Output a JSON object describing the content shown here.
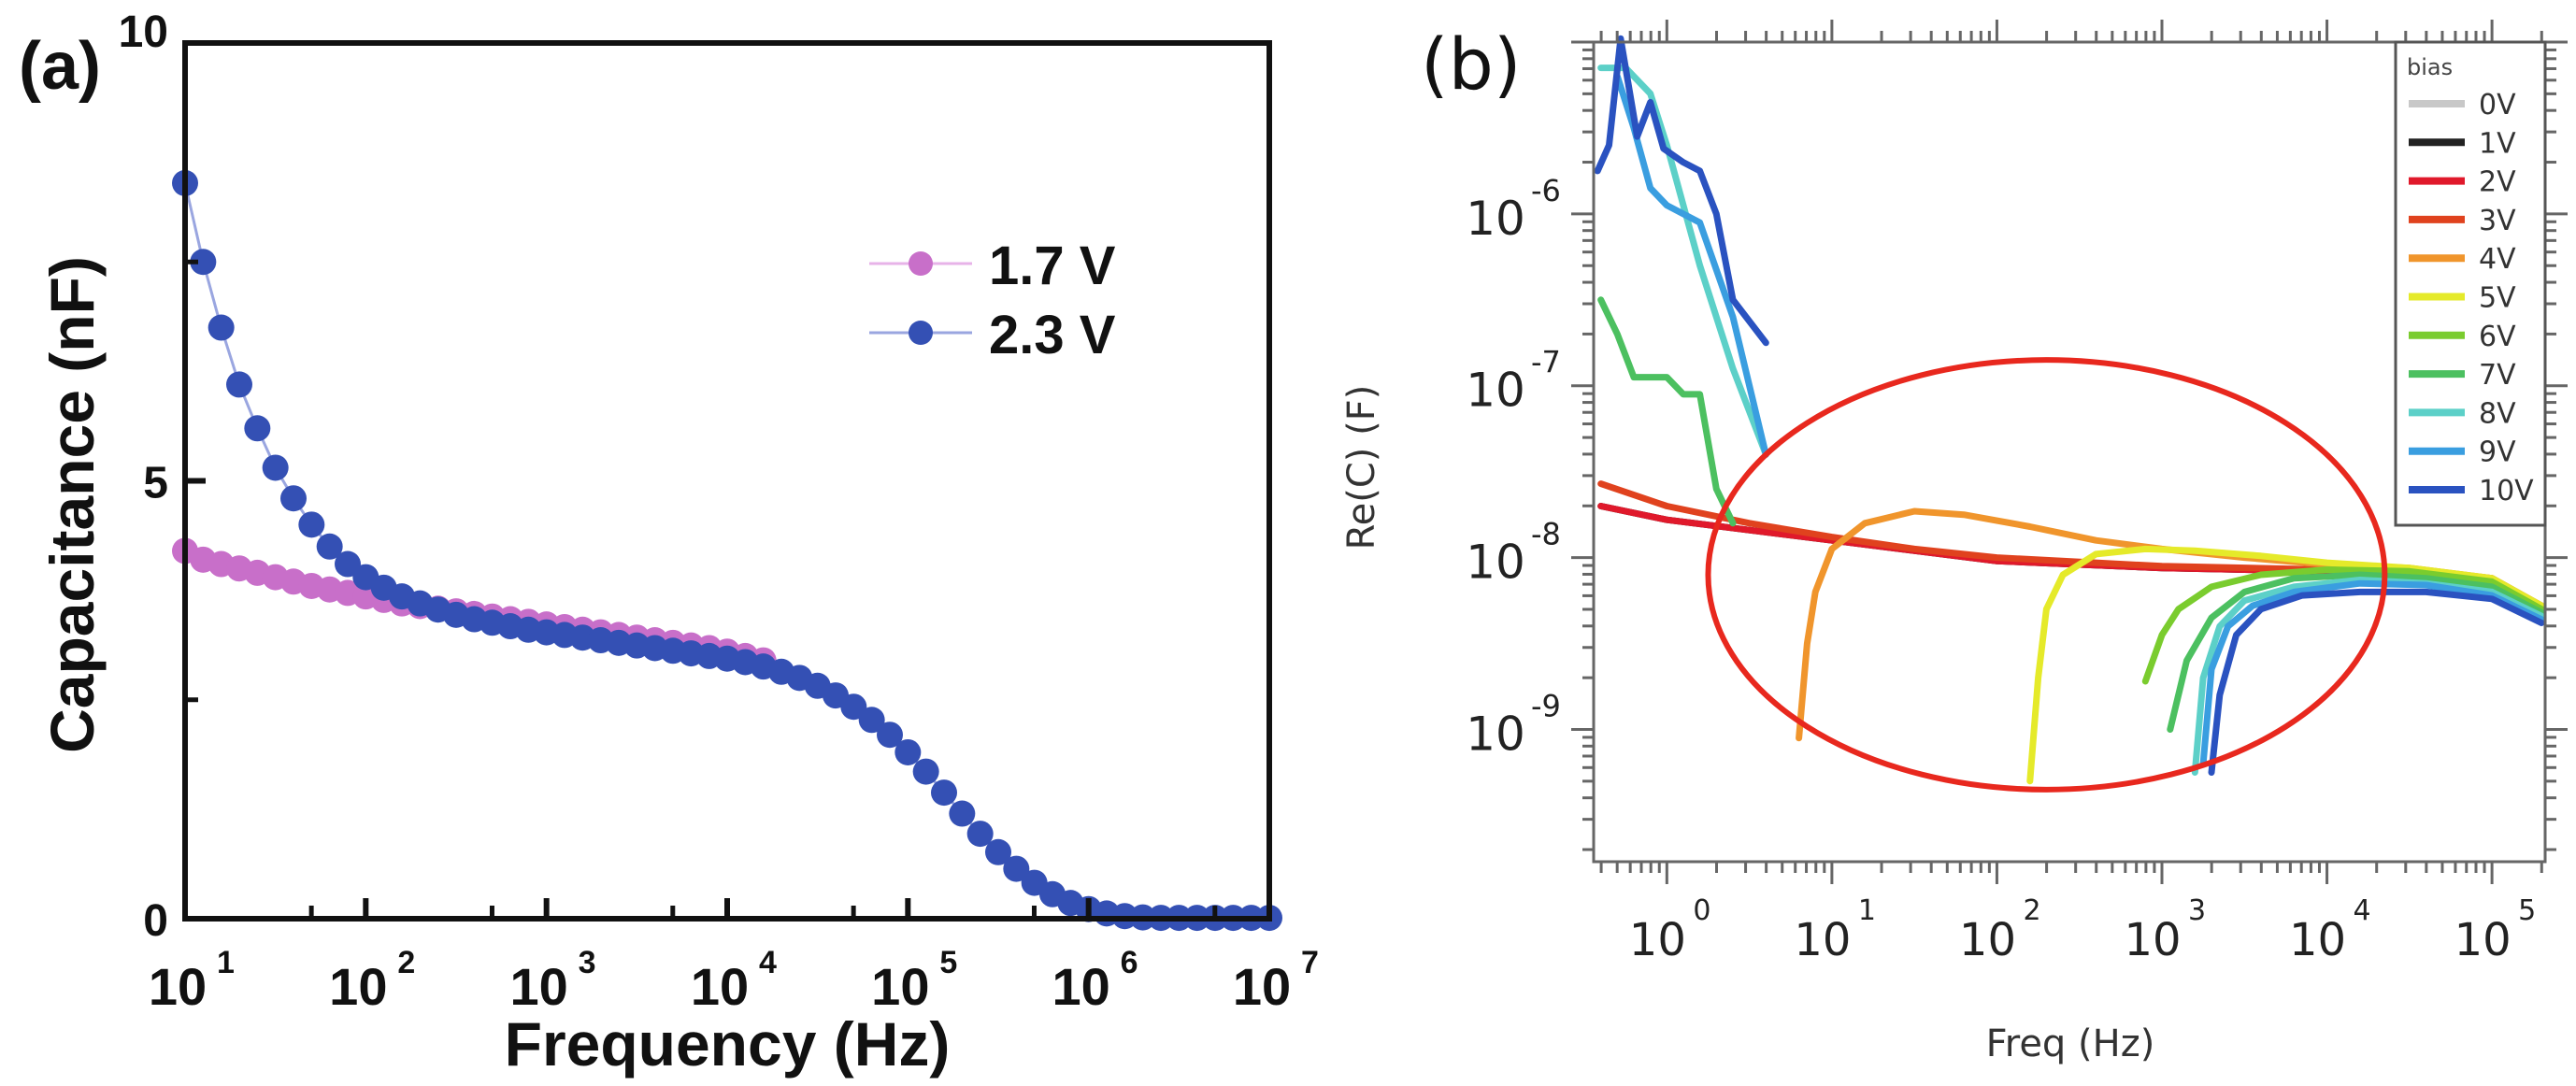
{
  "chart_data": [
    {
      "panel_label": "(a)",
      "type": "scatter",
      "title": "",
      "xlabel": "Frequency (Hz)",
      "ylabel": "Capacitance (nF)",
      "xscale": "log",
      "xlim": [
        10,
        10000000
      ],
      "ylim": [
        0,
        10
      ],
      "x_ticks": [
        {
          "base": "10",
          "exp": "1",
          "value": 10
        },
        {
          "base": "10",
          "exp": "2",
          "value": 100
        },
        {
          "base": "10",
          "exp": "3",
          "value": 1000
        },
        {
          "base": "10",
          "exp": "4",
          "value": 10000
        },
        {
          "base": "10",
          "exp": "5",
          "value": 100000
        },
        {
          "base": "10",
          "exp": "6",
          "value": 1000000
        },
        {
          "base": "10",
          "exp": "7",
          "value": 10000000
        }
      ],
      "y_ticks": [
        {
          "label": "0",
          "value": 0
        },
        {
          "label": "5",
          "value": 5
        },
        {
          "label": "10",
          "value": 10
        }
      ],
      "grid": false,
      "legend_position": "upper-right",
      "series": [
        {
          "name": "1.7 V",
          "color": "#c86fc9",
          "line_color": "#e7b3e8",
          "log10_x": [
            1.0,
            1.1,
            1.2,
            1.3,
            1.4,
            1.5,
            1.6,
            1.7,
            1.8,
            1.9,
            2.0,
            2.1,
            2.2,
            2.3,
            2.4,
            2.5,
            2.6,
            2.7,
            2.8,
            2.9,
            3.0,
            3.1,
            3.2,
            3.3,
            3.4,
            3.5,
            3.6,
            3.7,
            3.8,
            3.9,
            4.0,
            4.1,
            4.2
          ],
          "y": [
            4.2,
            4.1,
            4.05,
            4.0,
            3.95,
            3.9,
            3.85,
            3.8,
            3.76,
            3.72,
            3.68,
            3.64,
            3.6,
            3.57,
            3.54,
            3.51,
            3.48,
            3.45,
            3.42,
            3.39,
            3.36,
            3.33,
            3.3,
            3.27,
            3.24,
            3.21,
            3.18,
            3.15,
            3.12,
            3.09,
            3.05,
            3.0,
            2.95
          ]
        },
        {
          "name": "2.3 V",
          "color": "#3450b4",
          "line_color": "#9aa6e0",
          "log10_x": [
            1.0,
            1.1,
            1.2,
            1.3,
            1.4,
            1.5,
            1.6,
            1.7,
            1.8,
            1.9,
            2.0,
            2.1,
            2.2,
            2.3,
            2.4,
            2.5,
            2.6,
            2.7,
            2.8,
            2.9,
            3.0,
            3.1,
            3.2,
            3.3,
            3.4,
            3.5,
            3.6,
            3.7,
            3.8,
            3.9,
            4.0,
            4.1,
            4.2,
            4.3,
            4.4,
            4.5,
            4.6,
            4.7,
            4.8,
            4.9,
            5.0,
            5.1,
            5.2,
            5.3,
            5.4,
            5.5,
            5.6,
            5.7,
            5.8,
            5.9,
            6.0,
            6.1,
            6.2,
            6.3,
            6.4,
            6.5,
            6.6,
            6.7,
            6.8,
            6.9,
            7.0
          ],
          "y": [
            8.4,
            7.5,
            6.75,
            6.1,
            5.6,
            5.15,
            4.8,
            4.5,
            4.25,
            4.05,
            3.9,
            3.78,
            3.68,
            3.6,
            3.53,
            3.47,
            3.42,
            3.38,
            3.34,
            3.3,
            3.27,
            3.24,
            3.21,
            3.18,
            3.15,
            3.12,
            3.09,
            3.06,
            3.03,
            3.0,
            2.97,
            2.93,
            2.88,
            2.82,
            2.75,
            2.66,
            2.55,
            2.42,
            2.27,
            2.1,
            1.9,
            1.68,
            1.44,
            1.2,
            0.97,
            0.76,
            0.57,
            0.41,
            0.28,
            0.18,
            0.11,
            0.06,
            0.03,
            0.015,
            0.01,
            0.01,
            0.01,
            0.01,
            0.01,
            0.01,
            0.01
          ]
        }
      ]
    },
    {
      "panel_label": "(b)",
      "type": "line",
      "title": "",
      "xlabel": "Freq (Hz)",
      "ylabel": "Re(C) (F)",
      "xscale": "log",
      "yscale": "log",
      "xlim": [
        0.36,
        210000
      ],
      "ylim": [
        1.7e-10,
        1e-05
      ],
      "x_ticks": [
        {
          "base": "10",
          "exp": "0",
          "value": 1
        },
        {
          "base": "10",
          "exp": "1",
          "value": 10
        },
        {
          "base": "10",
          "exp": "2",
          "value": 100
        },
        {
          "base": "10",
          "exp": "3",
          "value": 1000
        },
        {
          "base": "10",
          "exp": "4",
          "value": 10000
        },
        {
          "base": "10",
          "exp": "5",
          "value": 100000
        }
      ],
      "y_ticks": [
        {
          "base": "10",
          "exp": "-6",
          "value": 1e-06
        },
        {
          "base": "10",
          "exp": "-7",
          "value": 1e-07
        },
        {
          "base": "10",
          "exp": "-8",
          "value": 1e-08
        },
        {
          "base": "10",
          "exp": "-9",
          "value": 1e-09
        }
      ],
      "grid": false,
      "legend_title": "bias",
      "legend_position": "upper-right",
      "annotation": {
        "type": "ellipse",
        "color": "#e8281e",
        "description": "red ellipse highlighting onset region",
        "center_log10": [
          2.3,
          -8.1
        ],
        "radius_log10": [
          2.05,
          1.25
        ]
      },
      "series": [
        {
          "name": "0V",
          "color": "#c8c8c8",
          "log10_x": [
            -0.4,
            0,
            1,
            2,
            3,
            4,
            4.6,
            5.0,
            5.3
          ],
          "log10_y": [
            -7.7,
            -7.78,
            -7.9,
            -8.02,
            -8.06,
            -8.08,
            -8.1,
            -8.14,
            -8.3
          ]
        },
        {
          "name": "1V",
          "color": "#222222",
          "log10_x": [
            -0.4,
            0,
            1,
            2,
            3,
            4,
            4.6,
            5.0,
            5.3
          ],
          "log10_y": [
            -7.7,
            -7.78,
            -7.9,
            -8.02,
            -8.06,
            -8.08,
            -8.1,
            -8.14,
            -8.3
          ]
        },
        {
          "name": "2V",
          "color": "#e0192b",
          "log10_x": [
            -0.4,
            0,
            1,
            2,
            3,
            4,
            4.6,
            5.0,
            5.3
          ],
          "log10_y": [
            -7.7,
            -7.78,
            -7.9,
            -8.02,
            -8.06,
            -8.08,
            -8.1,
            -8.14,
            -8.3
          ]
        },
        {
          "name": "3V",
          "color": "#e0421e",
          "log10_x": [
            -0.4,
            0,
            0.5,
            1,
            1.5,
            2,
            3,
            4,
            4.6,
            5.0,
            5.3
          ],
          "log10_y": [
            -7.57,
            -7.7,
            -7.8,
            -7.88,
            -7.95,
            -8.0,
            -8.05,
            -8.07,
            -8.08,
            -8.12,
            -8.28
          ]
        },
        {
          "name": "4V",
          "color": "#f0952c",
          "log10_x": [
            0.8,
            0.85,
            0.9,
            1.0,
            1.2,
            1.5,
            1.8,
            2.2,
            2.6,
            3.0,
            3.5,
            4.0,
            4.5,
            5.0,
            5.3
          ],
          "log10_y": [
            -9.05,
            -8.5,
            -8.2,
            -7.95,
            -7.8,
            -7.73,
            -7.75,
            -7.82,
            -7.9,
            -7.95,
            -8.0,
            -8.04,
            -8.06,
            -8.12,
            -8.28
          ]
        },
        {
          "name": "5V",
          "color": "#e5ea2a",
          "log10_x": [
            2.2,
            2.25,
            2.3,
            2.4,
            2.6,
            2.9,
            3.2,
            3.6,
            4.0,
            4.5,
            5.0,
            5.3
          ],
          "log10_y": [
            -9.3,
            -8.7,
            -8.3,
            -8.1,
            -7.98,
            -7.95,
            -7.96,
            -7.99,
            -8.03,
            -8.06,
            -8.12,
            -8.28
          ]
        },
        {
          "name": "6V",
          "color": "#7acc2e",
          "log10_x": [
            2.9,
            3.0,
            3.1,
            3.3,
            3.6,
            4.0,
            4.5,
            5.0,
            5.3
          ],
          "log10_y": [
            -8.72,
            -8.45,
            -8.3,
            -8.17,
            -8.1,
            -8.07,
            -8.08,
            -8.14,
            -8.3
          ]
        },
        {
          "name": "7V",
          "color": "#4cc060",
          "log10_x": [
            -0.4,
            -0.3,
            -0.2,
            0,
            0.1,
            0.2,
            0.3,
            0.4
          ],
          "log10_y": [
            -6.5,
            -6.7,
            -6.95,
            -6.95,
            -7.05,
            -7.05,
            -7.6,
            -7.8
          ],
          "log10_x2": [
            3.05,
            3.15,
            3.3,
            3.5,
            3.8,
            4.2,
            4.6,
            5.0,
            5.3
          ],
          "log10_y2": [
            -9.0,
            -8.6,
            -8.35,
            -8.2,
            -8.12,
            -8.1,
            -8.12,
            -8.17,
            -8.32
          ]
        },
        {
          "name": "8V",
          "color": "#5cd0c8",
          "log10_x": [
            -0.4,
            -0.25,
            -0.1,
            0,
            0.2,
            0.4,
            0.6
          ],
          "log10_y": [
            -5.15,
            -5.15,
            -5.3,
            -5.6,
            -6.3,
            -6.9,
            -7.4
          ],
          "log10_x2": [
            3.2,
            3.25,
            3.35,
            3.5,
            3.8,
            4.2,
            4.6,
            5.0,
            5.3
          ],
          "log10_y2": [
            -9.25,
            -8.7,
            -8.4,
            -8.25,
            -8.17,
            -8.13,
            -8.15,
            -8.2,
            -8.34
          ]
        },
        {
          "name": "9V",
          "color": "#3a9ee0",
          "log10_x": [
            -0.3,
            -0.2,
            -0.1,
            0,
            0.2,
            0.4,
            0.6
          ],
          "log10_y": [
            -5.2,
            -5.5,
            -5.85,
            -5.95,
            -6.05,
            -6.6,
            -7.4
          ],
          "log10_x2": [
            3.25,
            3.3,
            3.4,
            3.55,
            3.8,
            4.2,
            4.6,
            5.0,
            5.3
          ],
          "log10_y2": [
            -9.2,
            -8.65,
            -8.4,
            -8.28,
            -8.2,
            -8.15,
            -8.16,
            -8.22,
            -8.36
          ]
        },
        {
          "name": "10V",
          "color": "#2a52c0",
          "log10_x": [
            -0.42,
            -0.35,
            -0.28,
            -0.18,
            -0.1,
            -0.02,
            0.1,
            0.2,
            0.3,
            0.4,
            0.6
          ],
          "log10_y": [
            -5.75,
            -5.6,
            -4.98,
            -5.55,
            -5.35,
            -5.62,
            -5.7,
            -5.75,
            -6.0,
            -6.5,
            -6.75
          ],
          "log10_x2": [
            3.3,
            3.35,
            3.45,
            3.6,
            3.85,
            4.2,
            4.6,
            5.0,
            5.3
          ],
          "log10_y2": [
            -9.25,
            -8.8,
            -8.45,
            -8.3,
            -8.22,
            -8.2,
            -8.2,
            -8.24,
            -8.38
          ]
        }
      ]
    }
  ]
}
